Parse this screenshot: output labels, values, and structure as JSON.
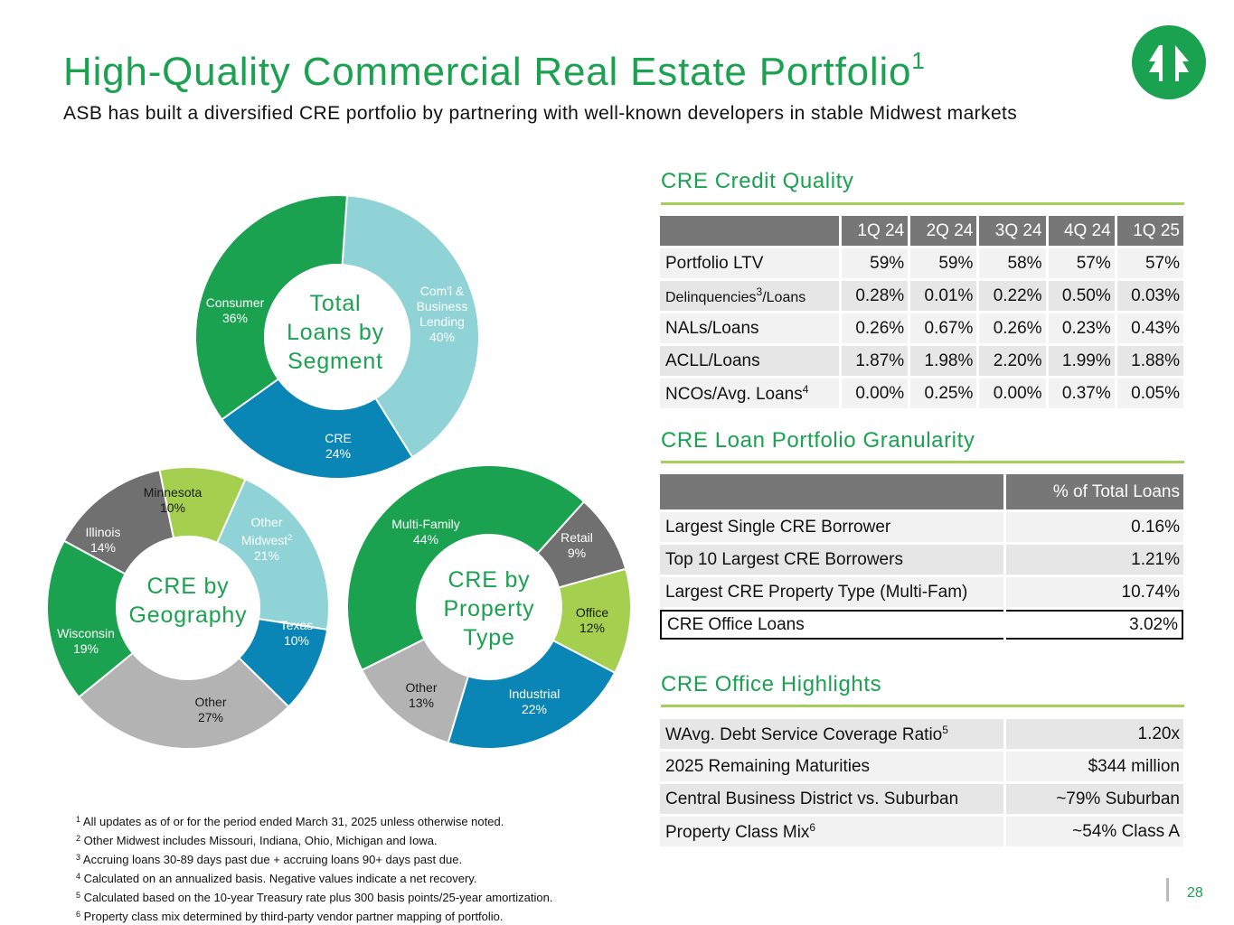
{
  "header": {
    "title": "High-Quality Commercial Real Estate Portfolio",
    "title_sup": "1",
    "subtitle": "ASB has built a diversified CRE portfolio by partnering with well-known developers in stable Midwest markets",
    "logo_icon": "asb-tree-logo-icon"
  },
  "colors": {
    "green": "#1aa250",
    "light_blue": "#8fd3d7",
    "blue": "#0a86b6",
    "gray": "#b3b3b3",
    "dark_gray": "#707070",
    "lime": "#a4cf4f"
  },
  "donuts": {
    "segment": {
      "center": [
        "Total",
        "Loans by",
        "Segment"
      ],
      "slices": [
        {
          "name": "Com'l & Business Lending",
          "lines": [
            "Com'l &",
            "Business",
            "Lending"
          ],
          "value": 40,
          "label": "40%",
          "color": "#8fd3d7"
        },
        {
          "name": "CRE",
          "lines": [
            "CRE"
          ],
          "value": 24,
          "label": "24%",
          "color": "#0a86b6"
        },
        {
          "name": "Consumer",
          "lines": [
            "Consumer"
          ],
          "value": 36,
          "label": "36%",
          "color": "#1aa250"
        }
      ]
    },
    "geography": {
      "center": [
        "CRE by",
        "Geography"
      ],
      "slices": [
        {
          "name": "Other Midwest",
          "lines": [
            "Other",
            "Midwest"
          ],
          "sup": "2",
          "value": 21,
          "label": "21%",
          "color": "#8fd3d7"
        },
        {
          "name": "Texas",
          "lines": [
            "Texas"
          ],
          "value": 10,
          "label": "10%",
          "color": "#0a86b6"
        },
        {
          "name": "Other",
          "lines": [
            "Other"
          ],
          "value": 27,
          "label": "27%",
          "color": "#b3b3b3"
        },
        {
          "name": "Wisconsin",
          "lines": [
            "Wisconsin"
          ],
          "value": 19,
          "label": "19%",
          "color": "#1aa250"
        },
        {
          "name": "Illinois",
          "lines": [
            "Illinois"
          ],
          "value": 14,
          "label": "14%",
          "color": "#707070"
        },
        {
          "name": "Minnesota",
          "lines": [
            "Minnesota"
          ],
          "value": 10,
          "label": "10%",
          "color": "#a4cf4f"
        }
      ]
    },
    "property": {
      "center": [
        "CRE by",
        "Property",
        "Type"
      ],
      "slices": [
        {
          "name": "Retail",
          "lines": [
            "Retail"
          ],
          "value": 9,
          "label": "9%",
          "color": "#707070"
        },
        {
          "name": "Office",
          "lines": [
            "Office"
          ],
          "value": 12,
          "label": "12%",
          "color": "#a4cf4f"
        },
        {
          "name": "Industrial",
          "lines": [
            "Industrial"
          ],
          "value": 22,
          "label": "22%",
          "color": "#0a86b6"
        },
        {
          "name": "Other",
          "lines": [
            "Other"
          ],
          "value": 13,
          "label": "13%",
          "color": "#b3b3b3"
        },
        {
          "name": "Multi-Family",
          "lines": [
            "Multi-Family"
          ],
          "value": 44,
          "label": "44%",
          "color": "#1aa250"
        }
      ]
    }
  },
  "credit_quality": {
    "heading": "CRE Credit Quality",
    "columns": [
      "1Q 24",
      "2Q 24",
      "3Q 24",
      "4Q 24",
      "1Q 25"
    ],
    "rows": [
      {
        "label": "Portfolio LTV",
        "sup": "",
        "small": false,
        "values": [
          "59%",
          "59%",
          "58%",
          "57%",
          "57%"
        ]
      },
      {
        "label": "Delinquencies",
        "sup": "3",
        "suffix": "/Loans",
        "small": true,
        "values": [
          "0.28%",
          "0.01%",
          "0.22%",
          "0.50%",
          "0.03%"
        ]
      },
      {
        "label": "NALs/Loans",
        "sup": "",
        "small": false,
        "values": [
          "0.26%",
          "0.67%",
          "0.26%",
          "0.23%",
          "0.43%"
        ]
      },
      {
        "label": "ACLL/Loans",
        "sup": "",
        "small": false,
        "values": [
          "1.87%",
          "1.98%",
          "2.20%",
          "1.99%",
          "1.88%"
        ]
      },
      {
        "label": "NCOs/Avg. Loans",
        "sup": "4",
        "small": false,
        "values": [
          "0.00%",
          "0.25%",
          "0.00%",
          "0.37%",
          "0.05%"
        ]
      }
    ]
  },
  "granularity": {
    "heading": "CRE Loan Portfolio Granularity",
    "column": "% of Total Loans",
    "rows": [
      {
        "label": "Largest Single CRE Borrower",
        "value": "0.16%"
      },
      {
        "label": "Top 10 Largest CRE Borrowers",
        "value": "1.21%"
      },
      {
        "label": "Largest CRE Property Type (Multi-Fam)",
        "value": "10.74%"
      },
      {
        "label": "CRE Office Loans",
        "value": "3.02%"
      }
    ]
  },
  "office": {
    "heading": "CRE Office Highlights",
    "rows": [
      {
        "label": "WAvg. Debt Service Coverage Ratio",
        "sup": "5",
        "value": "1.20x"
      },
      {
        "label": "2025 Remaining Maturities",
        "sup": "",
        "value": "$344 million"
      },
      {
        "label": "Central Business District vs. Suburban",
        "sup": "",
        "value": "~79% Suburban"
      },
      {
        "label": "Property Class Mix",
        "sup": "6",
        "value": "~54% Class A"
      }
    ]
  },
  "footnotes": [
    {
      "num": "1",
      "text": "All updates as of or for the period ended March 31, 2025 unless otherwise noted."
    },
    {
      "num": "2",
      "text": "Other Midwest includes Missouri, Indiana, Ohio, Michigan and Iowa."
    },
    {
      "num": "3",
      "text": "Accruing loans 30-89 days past due + accruing loans 90+ days past due."
    },
    {
      "num": "4",
      "text": "Calculated on an annualized basis. Negative values indicate a net recovery."
    },
    {
      "num": "5",
      "text": "Calculated based on the 10-year Treasury rate plus 300 basis points/25-year amortization."
    },
    {
      "num": "6",
      "text": "Property class mix determined by third-party vendor partner mapping of portfolio."
    }
  ],
  "page_number": "28",
  "chart_data": [
    {
      "type": "pie",
      "categories": [
        "Com'l & Business Lending",
        "CRE",
        "Consumer"
      ],
      "values": [
        40,
        24,
        36
      ],
      "title": "Total Loans by Segment"
    },
    {
      "type": "pie",
      "categories": [
        "Other Midwest",
        "Texas",
        "Other",
        "Wisconsin",
        "Illinois",
        "Minnesota"
      ],
      "values": [
        21,
        10,
        27,
        19,
        14,
        10
      ],
      "title": "CRE by Geography"
    },
    {
      "type": "pie",
      "categories": [
        "Retail",
        "Office",
        "Industrial",
        "Other",
        "Multi-Family"
      ],
      "values": [
        9,
        12,
        22,
        13,
        44
      ],
      "title": "CRE by Property Type"
    }
  ]
}
